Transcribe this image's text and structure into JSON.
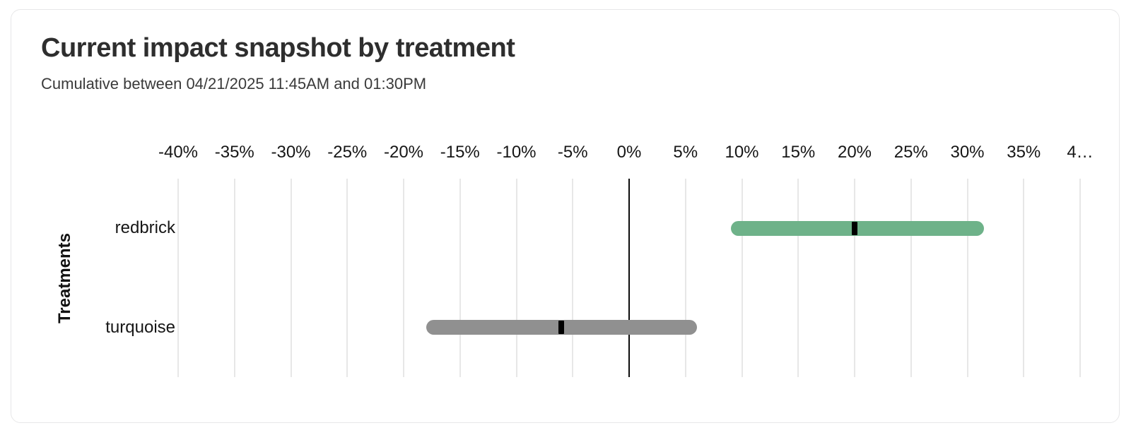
{
  "card": {
    "title": "Current impact snapshot by treatment",
    "subtitle": "Cumulative between 04/21/2025 11:45AM and 01:30PM"
  },
  "chart_data": {
    "type": "bar",
    "subtype": "horizontal-range-interval",
    "title": "Current impact snapshot by treatment",
    "subtitle": "Cumulative between 04/21/2025 11:45AM and 01:30PM",
    "xlabel": "",
    "ylabel": "Treatments",
    "xlim": [
      -40,
      40
    ],
    "grid": true,
    "legend": "none",
    "zero_line": true,
    "x_ticks": [
      {
        "value": -40,
        "label": "-40%"
      },
      {
        "value": -35,
        "label": "-35%"
      },
      {
        "value": -30,
        "label": "-30%"
      },
      {
        "value": -25,
        "label": "-25%"
      },
      {
        "value": -20,
        "label": "-20%"
      },
      {
        "value": -15,
        "label": "-15%"
      },
      {
        "value": -10,
        "label": "-10%"
      },
      {
        "value": -5,
        "label": "-5%"
      },
      {
        "value": 0,
        "label": "0%"
      },
      {
        "value": 5,
        "label": "5%"
      },
      {
        "value": 10,
        "label": "10%"
      },
      {
        "value": 15,
        "label": "15%"
      },
      {
        "value": 20,
        "label": "20%"
      },
      {
        "value": 25,
        "label": "25%"
      },
      {
        "value": 30,
        "label": "30%"
      },
      {
        "value": 35,
        "label": "35%"
      },
      {
        "value": 40,
        "label": "4…"
      }
    ],
    "categories": [
      "redbrick",
      "turquoise"
    ],
    "series": [
      {
        "name": "redbrick",
        "low": 9,
        "high": 31.5,
        "point": 20,
        "color": "#6eb289",
        "point_color": "#000000"
      },
      {
        "name": "turquoise",
        "low": -18,
        "high": 6,
        "point": -6,
        "color": "#909090",
        "point_color": "#000000"
      }
    ],
    "colors": {
      "grid": "#e7e7e7",
      "zero_line": "#0d0d0d",
      "text": "#161616"
    }
  }
}
